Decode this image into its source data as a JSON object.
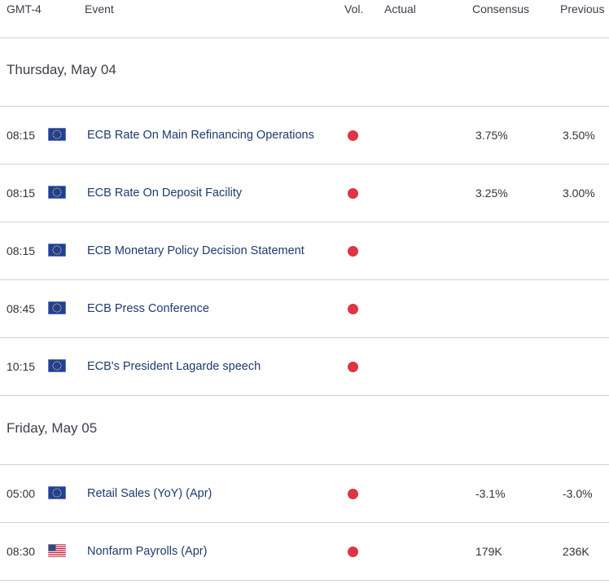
{
  "header": {
    "timezone": "GMT-4",
    "event": "Event",
    "vol": "Vol.",
    "actual": "Actual",
    "consensus": "Consensus",
    "previous": "Previous"
  },
  "colors": {
    "volatility_high": "#dc3545",
    "event_text": "#1f3b6e",
    "divider": "#cfd3da"
  },
  "days": [
    {
      "label": "Thursday, May 04",
      "events": [
        {
          "time": "08:15",
          "flag": "eu-flag-icon",
          "name": "ECB Rate On Main Refinancing Operations",
          "actual": "",
          "consensus": "3.75%",
          "previous": "3.50%"
        },
        {
          "time": "08:15",
          "flag": "eu-flag-icon",
          "name": "ECB Rate On Deposit Facility",
          "actual": "",
          "consensus": "3.25%",
          "previous": "3.00%"
        },
        {
          "time": "08:15",
          "flag": "eu-flag-icon",
          "name": "ECB Monetary Policy Decision Statement",
          "actual": "",
          "consensus": "",
          "previous": ""
        },
        {
          "time": "08:45",
          "flag": "eu-flag-icon",
          "name": "ECB Press Conference",
          "actual": "",
          "consensus": "",
          "previous": ""
        },
        {
          "time": "10:15",
          "flag": "eu-flag-icon",
          "name": "ECB's President Lagarde speech",
          "actual": "",
          "consensus": "",
          "previous": ""
        }
      ]
    },
    {
      "label": "Friday, May 05",
      "events": [
        {
          "time": "05:00",
          "flag": "eu-flag-icon",
          "name": "Retail Sales (YoY) (Apr)",
          "actual": "",
          "consensus": "-3.1%",
          "previous": "-3.0%"
        },
        {
          "time": "08:30",
          "flag": "us-flag-icon",
          "name": "Nonfarm Payrolls (Apr)",
          "actual": "",
          "consensus": "179K",
          "previous": "236K"
        }
      ]
    }
  ]
}
